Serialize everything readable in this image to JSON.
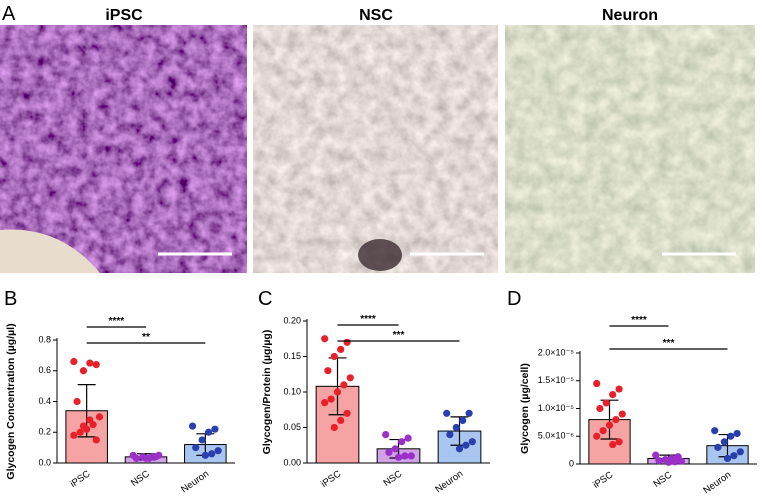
{
  "figure_a": {
    "letter": "A",
    "labels": [
      "iPSC",
      "NSC",
      "Neuron"
    ]
  },
  "chart_data": [
    {
      "type": "bar",
      "letter": "B",
      "y_label": "Glycogen Concentration (µg/µl)",
      "categories": [
        "iPSC",
        "NSC",
        "Neuron"
      ],
      "values": [
        0.34,
        0.04,
        0.12
      ],
      "errors": [
        0.17,
        0.02,
        0.07
      ],
      "colors": [
        "#f6a3a3",
        "#cfa3e6",
        "#a9c6f0"
      ],
      "point_colors": [
        "#e8202a",
        "#9b30c8",
        "#2a3fae"
      ],
      "points": [
        [
          0.66,
          0.64,
          0.65,
          0.6,
          0.4,
          0.3,
          0.25,
          0.22,
          0.2,
          0.18,
          0.15,
          0.28,
          0.24
        ],
        [
          0.05,
          0.04,
          0.03,
          0.04,
          0.03,
          0.05,
          0.04,
          0.03
        ],
        [
          0.24,
          0.22,
          0.2,
          0.15,
          0.1,
          0.08,
          0.06,
          0.05
        ]
      ],
      "ylim": [
        0,
        0.8
      ],
      "yticks": [
        {
          "value": 0,
          "label": "0.0"
        },
        0.2,
        0.4,
        0.6,
        0.8
      ],
      "annotations": [
        "****",
        "**"
      ]
    },
    {
      "type": "bar",
      "letter": "C",
      "y_label": "Glycogen/Protein (µg/µg)",
      "categories": [
        "iPSC",
        "NSC",
        "Neuron"
      ],
      "values": [
        0.108,
        0.02,
        0.045
      ],
      "errors": [
        0.04,
        0.013,
        0.02
      ],
      "colors": [
        "#f6a3a3",
        "#cfa3e6",
        "#a9c6f0"
      ],
      "point_colors": [
        "#e8202a",
        "#9b30c8",
        "#2a3fae"
      ],
      "points": [
        [
          0.175,
          0.17,
          0.16,
          0.15,
          0.13,
          0.12,
          0.11,
          0.1,
          0.09,
          0.085,
          0.07,
          0.06,
          0.05
        ],
        [
          0.04,
          0.035,
          0.03,
          0.02,
          0.015,
          0.01,
          0.01,
          0.008
        ],
        [
          0.07,
          0.07,
          0.06,
          0.05,
          0.04,
          0.03,
          0.025,
          0.02
        ]
      ],
      "ylim": [
        0,
        0.2
      ],
      "yticks": [
        {
          "value": 0,
          "label": "0.00"
        },
        0.05,
        {
          "value": 0.1,
          "label": "0.10"
        },
        0.15,
        {
          "value": 0.2,
          "label": "0.20"
        }
      ],
      "annotations": [
        "****",
        "***"
      ]
    },
    {
      "type": "bar",
      "letter": "D",
      "y_label": "Glycogen (µg/cell)",
      "categories": [
        "iPSC",
        "NSC",
        "Neuron"
      ],
      "values": [
        8e-06,
        1e-06,
        3.3e-06
      ],
      "errors": [
        3.5e-06,
        6e-07,
        2e-06
      ],
      "colors": [
        "#f6a3a3",
        "#cfa3e6",
        "#a9c6f0"
      ],
      "point_colors": [
        "#e8202a",
        "#9b30c8",
        "#2a3fae"
      ],
      "points": [
        [
          1.45e-05,
          1.35e-05,
          1.25e-05,
          1.1e-05,
          1e-05,
          9e-06,
          8e-06,
          7e-06,
          6e-06,
          5e-06,
          4e-06,
          3.5e-06
        ],
        [
          1.6e-06,
          1.3e-06,
          1e-06,
          8e-07,
          6e-07,
          5e-07,
          4e-07,
          3e-07
        ],
        [
          6e-06,
          5.5e-06,
          5e-06,
          4e-06,
          3e-06,
          2.2e-06,
          1.5e-06,
          1e-06
        ]
      ],
      "ylim": [
        0,
        2e-05
      ],
      "yticks": [
        0,
        {
          "value": 5e-06,
          "label": "5.0×10⁻⁶"
        },
        {
          "value": 1e-05,
          "label": "1.0×10⁻⁵"
        },
        {
          "value": 1.5e-05,
          "label": "1.5×10⁻⁵"
        },
        {
          "value": 2e-05,
          "label": "2.0×10⁻⁵"
        }
      ],
      "annotations": [
        "****",
        "***"
      ]
    }
  ]
}
